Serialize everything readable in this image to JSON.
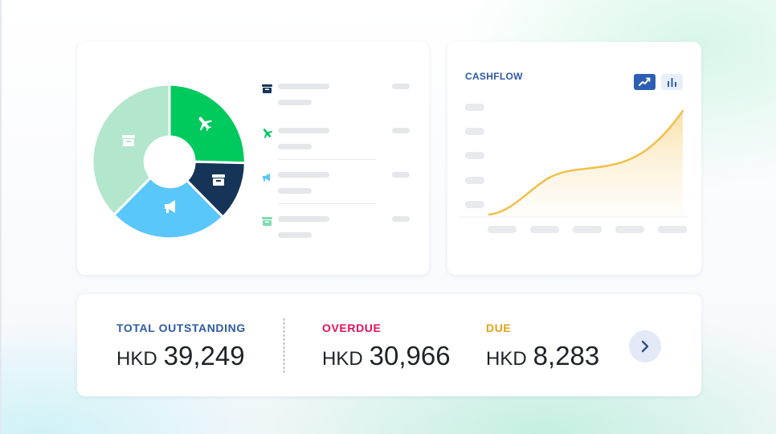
{
  "cashflow": {
    "title": "CASHFLOW",
    "line_button_icon": "trend-line-icon",
    "bar_button_icon": "bar-chart-icon"
  },
  "donut": {
    "segments": [
      {
        "color": "#00c95e",
        "icon": "airplane-icon"
      },
      {
        "color": "#163457",
        "icon": "archive-box-icon"
      },
      {
        "color": "#5ac7fb",
        "icon": "megaphone-icon"
      },
      {
        "color": "#b2e6cd",
        "icon": "archive-box-icon"
      }
    ]
  },
  "legend": [
    {
      "icon": "archive-box-icon",
      "color": "#163457"
    },
    {
      "icon": "airplane-icon",
      "color": "#00c95e"
    },
    {
      "icon": "megaphone-icon",
      "color": "#5ac7fb"
    },
    {
      "icon": "archive-box-icon",
      "color": "#7fdab0"
    }
  ],
  "totals": {
    "outstanding": {
      "label": "TOTAL OUTSTANDING",
      "currency": "HKD",
      "amount": "39,249",
      "color": "#2e5aa6"
    },
    "overdue": {
      "label": "OVERDUE",
      "currency": "HKD",
      "amount": "30,966",
      "color": "#e0105f"
    },
    "due": {
      "label": "DUE",
      "currency": "HKD",
      "amount": "8,283",
      "color": "#e0a11b"
    },
    "next_icon": "chevron-right-icon"
  },
  "colors": {
    "curve": "#f0c04a",
    "accent": "#2c5fb3"
  }
}
